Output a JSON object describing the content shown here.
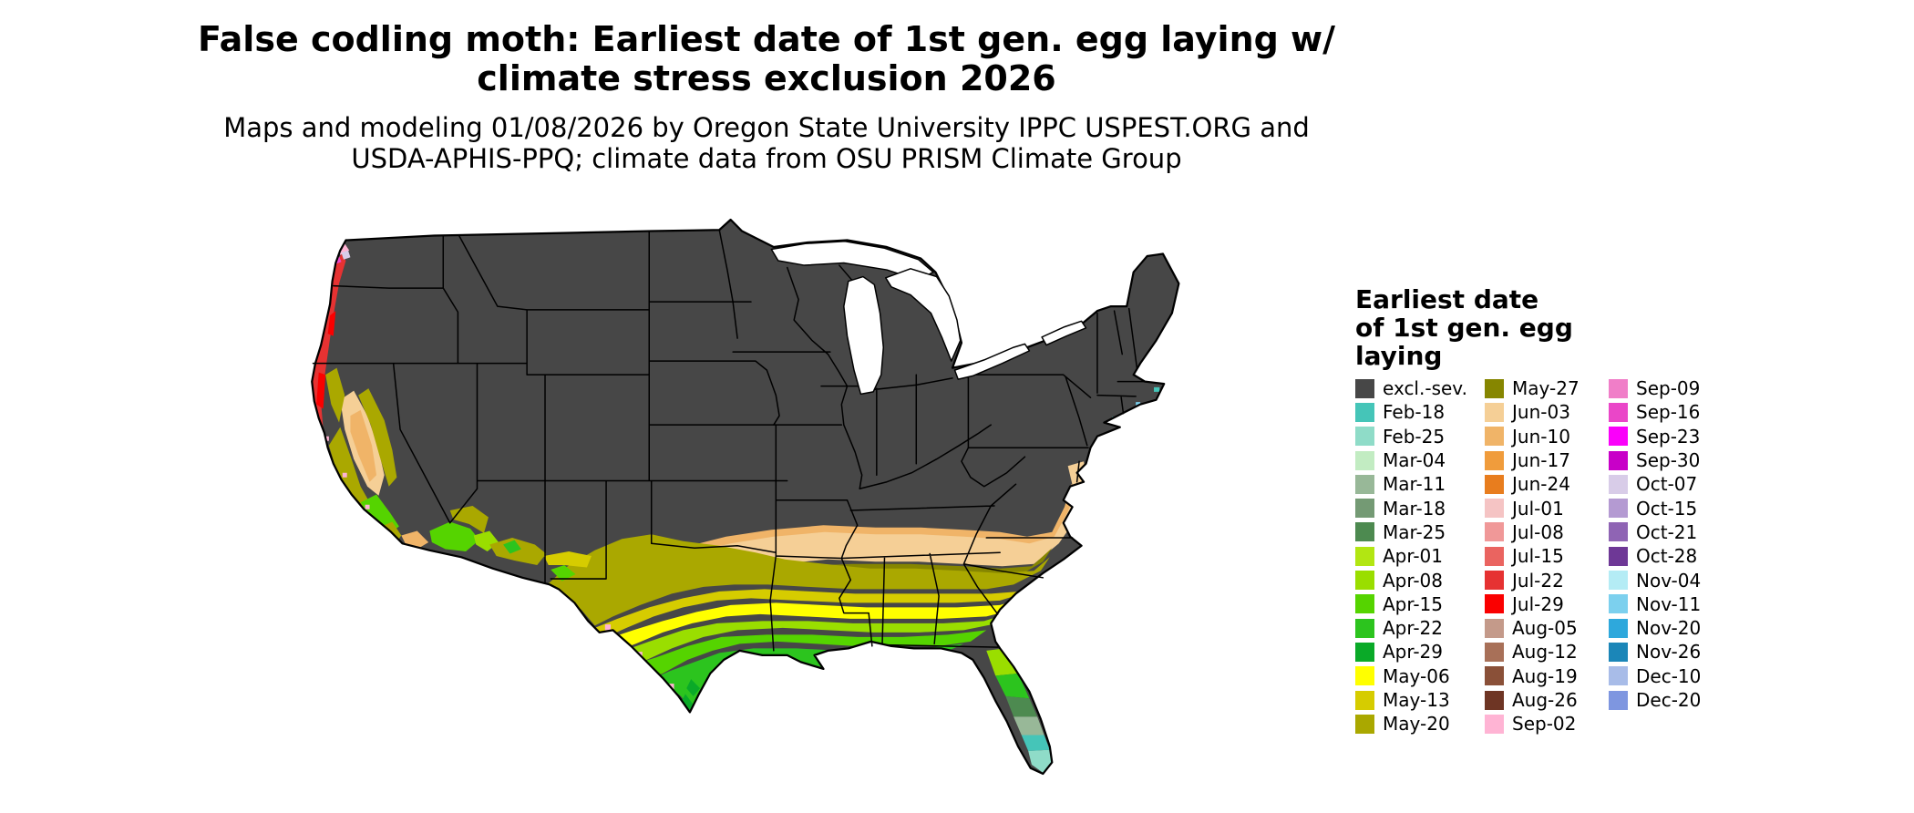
{
  "title": {
    "line1": "False codling moth: Earliest date of 1st gen. egg laying w/",
    "line2": "climate stress exclusion 2026"
  },
  "subtitle": {
    "line1": "Maps and modeling 01/08/2026 by Oregon State University IPPC USPEST.ORG and",
    "line2": "USDA-APHIS-PPQ; climate data from OSU PRISM Climate Group"
  },
  "map": {
    "water_color": "#ffffff",
    "outline_color": "#000000",
    "base_key": "excl.-sev."
  },
  "legend": {
    "title_lines": [
      "Earliest date",
      "of 1st gen. egg",
      "laying"
    ],
    "columns": [
      [
        {
          "label": "excl.-sev.",
          "color": "#474747"
        },
        {
          "label": "Feb-18",
          "color": "#45c5b8"
        },
        {
          "label": "Feb-25",
          "color": "#8fdcc8"
        },
        {
          "label": "Mar-04",
          "color": "#c2ecc2"
        },
        {
          "label": "Mar-11",
          "color": "#98b898"
        },
        {
          "label": "Mar-18",
          "color": "#749a74"
        },
        {
          "label": "Mar-25",
          "color": "#4d8a50"
        },
        {
          "label": "Apr-01",
          "color": "#b2e612"
        },
        {
          "label": "Apr-08",
          "color": "#9ade00"
        },
        {
          "label": "Apr-15",
          "color": "#55d400"
        },
        {
          "label": "Apr-22",
          "color": "#2cc41e"
        },
        {
          "label": "Apr-29",
          "color": "#0aaa28"
        },
        {
          "label": "May-06",
          "color": "#ffff00"
        },
        {
          "label": "May-13",
          "color": "#d6cc00"
        },
        {
          "label": "May-20",
          "color": "#aaa800"
        }
      ],
      [
        {
          "label": "May-27",
          "color": "#868600"
        },
        {
          "label": "Jun-03",
          "color": "#f5cf96"
        },
        {
          "label": "Jun-10",
          "color": "#f0b468"
        },
        {
          "label": "Jun-17",
          "color": "#f09c3c"
        },
        {
          "label": "Jun-24",
          "color": "#e87d1e"
        },
        {
          "label": "Jul-01",
          "color": "#f5c4c4"
        },
        {
          "label": "Jul-08",
          "color": "#f09898"
        },
        {
          "label": "Jul-15",
          "color": "#ea6460"
        },
        {
          "label": "Jul-22",
          "color": "#e63232"
        },
        {
          "label": "Jul-29",
          "color": "#fa0000"
        },
        {
          "label": "Aug-05",
          "color": "#c49a8a"
        },
        {
          "label": "Aug-12",
          "color": "#a87058"
        },
        {
          "label": "Aug-19",
          "color": "#8a5038"
        },
        {
          "label": "Aug-26",
          "color": "#6e3524"
        },
        {
          "label": "Sep-02",
          "color": "#ffb4d4"
        }
      ],
      [
        {
          "label": "Sep-09",
          "color": "#f07ec8"
        },
        {
          "label": "Sep-16",
          "color": "#ea46c8"
        },
        {
          "label": "Sep-23",
          "color": "#fa00fa"
        },
        {
          "label": "Sep-30",
          "color": "#c800c8"
        },
        {
          "label": "Oct-07",
          "color": "#d8cce8"
        },
        {
          "label": "Oct-15",
          "color": "#b49ad2"
        },
        {
          "label": "Oct-21",
          "color": "#8f64b4"
        },
        {
          "label": "Oct-28",
          "color": "#6e3896"
        },
        {
          "label": "Nov-04",
          "color": "#b4ecf5"
        },
        {
          "label": "Nov-11",
          "color": "#7cd0ee"
        },
        {
          "label": "Nov-20",
          "color": "#2ea8dc"
        },
        {
          "label": "Nov-26",
          "color": "#1b86b8"
        },
        {
          "label": "Dec-10",
          "color": "#a8bce8"
        },
        {
          "label": "Dec-20",
          "color": "#7e96e0"
        }
      ]
    ]
  }
}
